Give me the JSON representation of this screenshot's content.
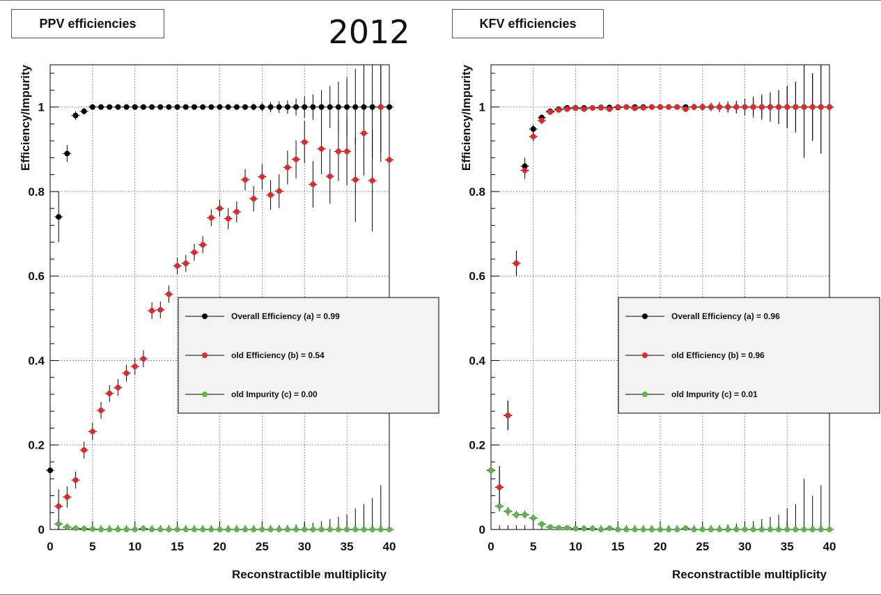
{
  "annotation": {
    "year": "2012"
  },
  "chart_data": [
    {
      "type": "scatter",
      "panel_title": "PPV efficiencies",
      "xlabel": "Reconstractible multiplicity",
      "ylabel": "Efficiency/Impurity",
      "xlim": [
        0,
        40
      ],
      "ylim": [
        0,
        1.1
      ],
      "x_ticks": [
        0,
        5,
        10,
        15,
        20,
        25,
        30,
        35,
        40
      ],
      "y_ticks": [
        0,
        0.2,
        0.4,
        0.6,
        0.8,
        1
      ],
      "grid": true,
      "legend_position": "center-right",
      "series": [
        {
          "name": "Overall Efficiency (a) = 0.99",
          "color": "#000000",
          "x": [
            0,
            1,
            2,
            3,
            4,
            5,
            6,
            7,
            8,
            9,
            10,
            11,
            12,
            13,
            14,
            15,
            16,
            17,
            18,
            19,
            20,
            21,
            22,
            23,
            24,
            25,
            26,
            27,
            28,
            29,
            30,
            31,
            32,
            33,
            34,
            35,
            36,
            37,
            38,
            39,
            40
          ],
          "y": [
            0.14,
            0.74,
            0.89,
            0.98,
            0.99,
            1,
            1,
            1,
            1,
            1,
            1,
            1,
            1,
            1,
            1,
            1,
            1,
            1,
            1,
            1,
            1,
            1,
            1,
            1,
            1,
            1,
            1,
            1,
            1,
            1,
            1,
            1,
            1,
            1,
            1,
            1,
            1,
            1,
            1,
            1,
            1
          ],
          "err": [
            0.008,
            0.06,
            0.02,
            0.01,
            0.008,
            0.003,
            0.002,
            0.002,
            0.002,
            0.002,
            0.002,
            0.002,
            0.002,
            0.002,
            0.002,
            0.003,
            0.003,
            0.003,
            0.003,
            0.004,
            0.004,
            0.005,
            0.005,
            0.007,
            0.008,
            0.01,
            0.012,
            0.014,
            0.016,
            0.02,
            0.025,
            0.03,
            0.04,
            0.05,
            0.06,
            0.07,
            0.09,
            0.11,
            0.12,
            0.13,
            0
          ]
        },
        {
          "name": "old Efficiency (b) = 0.54",
          "color": "#e8262a",
          "x": [
            1,
            2,
            3,
            4,
            5,
            6,
            7,
            8,
            9,
            10,
            11,
            12,
            13,
            14,
            15,
            16,
            17,
            18,
            19,
            20,
            21,
            22,
            23,
            24,
            25,
            26,
            27,
            28,
            29,
            30,
            31,
            32,
            33,
            34,
            35,
            36,
            37,
            38,
            39,
            40
          ],
          "y": [
            0.055,
            0.077,
            0.117,
            0.188,
            0.232,
            0.282,
            0.322,
            0.336,
            0.37,
            0.386,
            0.404,
            0.518,
            0.52,
            0.557,
            0.624,
            0.63,
            0.656,
            0.674,
            0.738,
            0.76,
            0.736,
            0.752,
            0.828,
            0.783,
            0.835,
            0.792,
            0.801,
            0.857,
            0.876,
            0.917,
            0.817,
            0.901,
            0.836,
            0.895,
            0.895,
            0.828,
            0.938,
            0.826,
            1,
            0.875
          ],
          "err": [
            0.04,
            0.025,
            0.02,
            0.02,
            0.02,
            0.02,
            0.02,
            0.02,
            0.02,
            0.02,
            0.02,
            0.02,
            0.02,
            0.02,
            0.02,
            0.02,
            0.02,
            0.02,
            0.02,
            0.02,
            0.025,
            0.025,
            0.025,
            0.03,
            0.03,
            0.035,
            0.04,
            0.04,
            0.045,
            0.05,
            0.055,
            0.06,
            0.065,
            0.07,
            0.08,
            0.1,
            0.1,
            0.12,
            0.11,
            0.15
          ]
        },
        {
          "name": "old Impurity (c) = 0.00",
          "color": "#5cb64a",
          "x": [
            1,
            2,
            3,
            4,
            5,
            6,
            7,
            8,
            9,
            10,
            11,
            12,
            13,
            14,
            15,
            16,
            17,
            18,
            19,
            20,
            21,
            22,
            23,
            24,
            25,
            26,
            27,
            28,
            29,
            30,
            31,
            32,
            33,
            34,
            35,
            36,
            37,
            38,
            39,
            40
          ],
          "y": [
            0.013,
            0.006,
            0.003,
            0.002,
            0.001,
            0,
            0,
            0,
            0,
            0,
            0.002,
            0,
            0,
            0,
            0,
            0,
            0,
            0,
            0,
            0,
            0,
            0,
            0,
            0,
            0,
            0,
            0,
            0,
            0,
            0,
            0,
            0,
            0,
            0,
            0,
            0,
            0,
            0,
            0,
            0
          ],
          "err": [
            0.012,
            0.008,
            0.005,
            0.003,
            0.002,
            0.002,
            0.002,
            0.002,
            0.002,
            0.002,
            0.003,
            0.002,
            0.002,
            0.002,
            0.003,
            0.003,
            0.003,
            0.003,
            0.003,
            0.004,
            0.004,
            0.004,
            0.005,
            0.006,
            0.006,
            0.008,
            0.009,
            0.01,
            0.012,
            0.014,
            0.016,
            0.02,
            0.025,
            0.03,
            0.035,
            0.05,
            0.06,
            0.075,
            0.105,
            0
          ]
        }
      ]
    },
    {
      "type": "scatter",
      "panel_title": "KFV efficiencies",
      "xlabel": "Reconstractible multiplicity",
      "ylabel": "Efficiency/Impurity",
      "xlim": [
        0,
        40
      ],
      "ylim": [
        0,
        1.1
      ],
      "x_ticks": [
        0,
        5,
        10,
        15,
        20,
        25,
        30,
        35,
        40
      ],
      "y_ticks": [
        0,
        0.2,
        0.4,
        0.6,
        0.8,
        1
      ],
      "grid": true,
      "legend_position": "center-right",
      "series": [
        {
          "name": "Overall Efficiency (a) = 0.96",
          "color": "#000000",
          "x": [
            0,
            1,
            2,
            3,
            4,
            5,
            6,
            7,
            8,
            9,
            10,
            11,
            12,
            13,
            14,
            15,
            16,
            17,
            18,
            19,
            20,
            21,
            22,
            23,
            24,
            25,
            26,
            27,
            28,
            29,
            30,
            31,
            32,
            33,
            34,
            35,
            36,
            37,
            38,
            39,
            40
          ],
          "y": [
            0.14,
            0.1,
            0.27,
            0.63,
            0.86,
            0.948,
            0.975,
            0.99,
            0.995,
            0.998,
            0.998,
            0.998,
            0.998,
            0.999,
            0.999,
            0.999,
            1,
            1,
            1,
            1,
            1,
            1,
            1,
            1,
            1,
            1,
            1,
            1,
            1,
            1,
            1,
            1,
            1,
            1,
            1,
            1,
            1,
            1,
            1,
            1,
            1
          ],
          "err": [
            0.008,
            0.05,
            0.035,
            0.03,
            0.02,
            0.01,
            0.008,
            0.005,
            0.004,
            0.003,
            0.003,
            0.003,
            0.003,
            0.003,
            0.003,
            0.003,
            0.003,
            0.003,
            0.004,
            0.004,
            0.004,
            0.005,
            0.005,
            0.006,
            0.007,
            0.008,
            0.009,
            0.01,
            0.012,
            0.014,
            0.016,
            0.02,
            0.025,
            0.03,
            0.04,
            0.05,
            0.06,
            0.12,
            0.08,
            0.11,
            0
          ]
        },
        {
          "name": "old Efficiency (b) = 0.96",
          "color": "#e8262a",
          "x": [
            0,
            1,
            2,
            3,
            4,
            5,
            6,
            7,
            8,
            9,
            10,
            11,
            12,
            13,
            14,
            15,
            16,
            17,
            18,
            19,
            20,
            21,
            22,
            23,
            24,
            25,
            26,
            27,
            28,
            29,
            30,
            31,
            32,
            33,
            34,
            35,
            36,
            37,
            38,
            39,
            40
          ],
          "y": [
            0.14,
            0.1,
            0.27,
            0.63,
            0.85,
            0.93,
            0.968,
            0.988,
            0.993,
            0.995,
            0.997,
            0.995,
            0.998,
            0.998,
            0.995,
            1,
            1,
            0.997,
            0.998,
            1,
            1,
            1,
            1,
            0.995,
            1,
            1,
            1,
            1,
            1,
            1,
            1,
            1,
            1,
            1,
            1,
            1,
            1,
            1,
            1,
            1,
            1
          ],
          "err": [
            0.008,
            0.05,
            0.035,
            0.03,
            0.02,
            0.012,
            0.008,
            0.006,
            0.005,
            0.004,
            0.004,
            0.004,
            0.004,
            0.004,
            0.004,
            0.004,
            0.004,
            0.004,
            0.004,
            0.005,
            0.005,
            0.005,
            0.006,
            0.007,
            0.008,
            0.009,
            0.01,
            0.012,
            0.013,
            0.015,
            0.02,
            0.025,
            0.03,
            0.035,
            0.04,
            0.05,
            0.06,
            0.12,
            0.08,
            0.11,
            0
          ]
        },
        {
          "name": "old Impurity (c) = 0.01",
          "color": "#5cb64a",
          "x": [
            0,
            1,
            2,
            3,
            4,
            5,
            6,
            7,
            8,
            9,
            10,
            11,
            12,
            13,
            14,
            15,
            16,
            17,
            18,
            19,
            20,
            21,
            22,
            23,
            24,
            25,
            26,
            27,
            28,
            29,
            30,
            31,
            32,
            33,
            34,
            35,
            36,
            37,
            38,
            39,
            40
          ],
          "y": [
            0.14,
            0.055,
            0.043,
            0.035,
            0.035,
            0.027,
            0.013,
            0.006,
            0.004,
            0.004,
            0.002,
            0.002,
            0.002,
            0,
            0.003,
            0,
            0,
            0,
            0,
            0,
            0,
            0,
            0,
            0.003,
            0,
            0,
            0,
            0,
            0,
            0,
            0,
            0,
            0,
            0,
            0,
            0,
            0,
            0,
            0,
            0,
            0
          ],
          "err": [
            0.008,
            0.012,
            0.01,
            0.009,
            0.009,
            0.008,
            0.006,
            0.004,
            0.003,
            0.003,
            0.003,
            0.003,
            0.003,
            0.003,
            0.003,
            0.003,
            0.003,
            0.003,
            0.003,
            0.004,
            0.004,
            0.005,
            0.005,
            0.006,
            0.006,
            0.008,
            0.009,
            0.01,
            0.012,
            0.014,
            0.016,
            0.02,
            0.025,
            0.03,
            0.035,
            0.05,
            0.06,
            0.12,
            0.08,
            0.105,
            0
          ]
        }
      ]
    }
  ]
}
